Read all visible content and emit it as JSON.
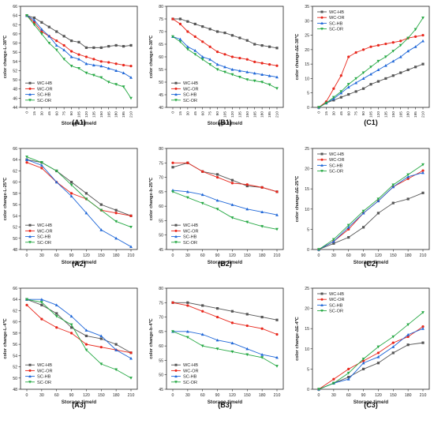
{
  "figure": {
    "colors": {
      "WC-HB": "#555555",
      "WC-OR": "#e8261b",
      "SC-HB": "#1f67d8",
      "SC-OR": "#27a945"
    }
  },
  "chart_data": [
    {
      "id": "A1",
      "panel_label": "(A1)",
      "type": "line",
      "ylabel": "color change-L-38℃",
      "xlabel": "Storage time/d",
      "x": [
        0,
        15,
        30,
        45,
        60,
        75,
        90,
        105,
        120,
        135,
        150,
        165,
        180,
        195,
        210
      ],
      "ylim": [
        44,
        66
      ],
      "yticks": [
        44,
        46,
        48,
        50,
        52,
        54,
        56,
        58,
        60,
        62,
        64,
        66
      ],
      "legend": "bottom-left",
      "series": [
        {
          "name": "WC-HB",
          "values": [
            64,
            63.5,
            62.5,
            61.5,
            60.5,
            59.5,
            58.5,
            58.2,
            57,
            57,
            57,
            57.3,
            57.5,
            57.3,
            57.5
          ]
        },
        {
          "name": "WC-OR",
          "values": [
            64,
            62.5,
            60.5,
            59.5,
            58.5,
            57.5,
            56.2,
            55.5,
            55,
            54.5,
            54,
            53.8,
            53.5,
            53.2,
            53
          ]
        },
        {
          "name": "SC-HB",
          "values": [
            64,
            63,
            61,
            59.5,
            57.5,
            56.5,
            55,
            54.5,
            53.5,
            53.2,
            53,
            52.5,
            52,
            51.5,
            50.5
          ]
        },
        {
          "name": "SC-OR",
          "values": [
            64,
            62,
            60,
            58,
            56.5,
            54.5,
            53,
            52.5,
            51.5,
            51,
            50.5,
            49.5,
            49,
            48.5,
            46
          ]
        }
      ]
    },
    {
      "id": "B1",
      "panel_label": "(B1)",
      "type": "line",
      "ylabel": "color change-b-38℃",
      "xlabel": "Storage time/d",
      "x": [
        0,
        15,
        30,
        45,
        60,
        75,
        90,
        105,
        120,
        135,
        150,
        165,
        180,
        195,
        210
      ],
      "ylim": [
        40,
        80
      ],
      "yticks": [
        40,
        45,
        50,
        55,
        60,
        65,
        70,
        75,
        80
      ],
      "legend": "bottom-left",
      "series": [
        {
          "name": "WC-HB",
          "values": [
            75,
            75,
            74,
            73,
            72,
            71,
            70,
            69.5,
            68.5,
            67.5,
            66.5,
            65,
            64.5,
            64,
            63.5
          ]
        },
        {
          "name": "WC-OR",
          "values": [
            75,
            73,
            70,
            68,
            66,
            64,
            62,
            61,
            60,
            59.5,
            59,
            58,
            57.5,
            57,
            56.5
          ]
        },
        {
          "name": "SC-HB",
          "values": [
            68,
            67,
            64,
            62.5,
            60,
            59,
            57,
            56,
            55,
            54.5,
            54,
            53.5,
            53,
            52.5,
            52
          ]
        },
        {
          "name": "SC-OR",
          "values": [
            68,
            66,
            63,
            61,
            59,
            57,
            55,
            54,
            53,
            52,
            51,
            50.5,
            50,
            49,
            47.5
          ]
        }
      ]
    },
    {
      "id": "C1",
      "panel_label": "(C1)",
      "type": "line",
      "ylabel": "color change-ΔE-38℃",
      "xlabel": "",
      "x": [
        0,
        15,
        30,
        45,
        60,
        75,
        90,
        105,
        120,
        135,
        150,
        165,
        180,
        195,
        210
      ],
      "ylim": [
        0,
        35
      ],
      "yticks": [
        0,
        5,
        10,
        15,
        20,
        25,
        30,
        35
      ],
      "legend": "top-left",
      "series": [
        {
          "name": "WC-HB",
          "values": [
            0,
            1.5,
            2.5,
            3.5,
            4.5,
            5.5,
            6.5,
            8,
            9,
            10,
            11,
            12,
            13,
            14,
            15
          ]
        },
        {
          "name": "WC-OR",
          "values": [
            0,
            2,
            6.5,
            11,
            17.5,
            19,
            20,
            21,
            21.5,
            22,
            22.5,
            23,
            24,
            24.5,
            25
          ]
        },
        {
          "name": "SC-HB",
          "values": [
            0,
            1.5,
            3,
            5,
            7,
            8.5,
            10,
            11.5,
            13,
            14.5,
            16,
            17.5,
            19.5,
            21,
            23
          ]
        },
        {
          "name": "SC-OR",
          "values": [
            0,
            1.5,
            3.5,
            5.5,
            8,
            10,
            12,
            14,
            16,
            17.5,
            19.5,
            21.5,
            24,
            27,
            31
          ]
        }
      ]
    },
    {
      "id": "A2",
      "panel_label": "(A2)",
      "type": "line",
      "ylabel": "color change-L-25℃",
      "xlabel": "Storage time/d",
      "x": [
        0,
        30,
        60,
        90,
        120,
        150,
        180,
        210
      ],
      "ylim": [
        48,
        66
      ],
      "yticks": [
        48,
        50,
        52,
        54,
        56,
        58,
        60,
        62,
        64,
        66
      ],
      "legend": "bottom-left",
      "series": [
        {
          "name": "WC-HB",
          "values": [
            64,
            63.5,
            62,
            60,
            58,
            56,
            55,
            54
          ]
        },
        {
          "name": "WC-OR",
          "values": [
            63.5,
            62.5,
            60,
            58,
            57,
            55,
            54.5,
            54
          ]
        },
        {
          "name": "SC-HB",
          "values": [
            64,
            63,
            60,
            57.5,
            54.5,
            51.5,
            50,
            48.5
          ]
        },
        {
          "name": "SC-OR",
          "values": [
            64.5,
            63.5,
            62,
            59.5,
            57,
            55,
            53,
            52
          ]
        }
      ]
    },
    {
      "id": "B2",
      "panel_label": "(B2)",
      "type": "line",
      "ylabel": "color change-b-25℃",
      "xlabel": "Storage time/d",
      "x": [
        0,
        30,
        60,
        90,
        120,
        150,
        180,
        210
      ],
      "ylim": [
        45,
        80
      ],
      "yticks": [
        45,
        50,
        55,
        60,
        65,
        70,
        75,
        80
      ],
      "legend": "bottom-left",
      "series": [
        {
          "name": "WC-HB",
          "values": [
            73.5,
            75,
            72,
            71,
            69,
            67,
            66.5,
            65
          ]
        },
        {
          "name": "WC-OR",
          "values": [
            75,
            75,
            72,
            70,
            68,
            67.5,
            66.5,
            65
          ]
        },
        {
          "name": "SC-HB",
          "values": [
            65.5,
            65,
            64,
            62,
            60.5,
            59,
            58,
            57
          ]
        },
        {
          "name": "SC-OR",
          "values": [
            65,
            63,
            61,
            59,
            56,
            54.5,
            53,
            52
          ]
        }
      ]
    },
    {
      "id": "C2",
      "panel_label": "(C2)",
      "type": "line",
      "ylabel": "color change-ΔE-25℃",
      "xlabel": "Storage time/d",
      "x": [
        0,
        30,
        60,
        90,
        120,
        150,
        180,
        210
      ],
      "ylim": [
        0,
        25
      ],
      "yticks": [
        0,
        5,
        10,
        15,
        20,
        25
      ],
      "legend": "top-left",
      "series": [
        {
          "name": "WC-HB",
          "values": [
            0,
            1.5,
            3,
            5.5,
            9,
            11.5,
            12.5,
            14
          ]
        },
        {
          "name": "WC-OR",
          "values": [
            0,
            2,
            5,
            9,
            12,
            15.5,
            17.5,
            19.5
          ]
        },
        {
          "name": "SC-HB",
          "values": [
            0,
            2,
            5.5,
            9,
            12,
            15.5,
            18,
            19
          ]
        },
        {
          "name": "SC-OR",
          "values": [
            0,
            2.5,
            6,
            9.5,
            12.5,
            16,
            18.5,
            21
          ]
        }
      ]
    },
    {
      "id": "A3",
      "panel_label": "(A3)",
      "type": "line",
      "ylabel": "color change-L-4℃",
      "xlabel": "Storage time/d",
      "x": [
        0,
        30,
        60,
        90,
        120,
        150,
        180,
        210
      ],
      "ylim": [
        48,
        66
      ],
      "yticks": [
        48,
        50,
        52,
        54,
        56,
        58,
        60,
        62,
        64,
        66
      ],
      "legend": "bottom-left",
      "series": [
        {
          "name": "WC-HB",
          "values": [
            64,
            63,
            61.5,
            59,
            57.5,
            57,
            56,
            54.5
          ]
        },
        {
          "name": "WC-OR",
          "values": [
            63,
            60.5,
            59,
            58,
            56,
            55.5,
            55,
            54.5
          ]
        },
        {
          "name": "SC-HB",
          "values": [
            64,
            64,
            63,
            61,
            58.5,
            57.5,
            55,
            53.5
          ]
        },
        {
          "name": "SC-OR",
          "values": [
            64,
            63.5,
            61,
            59.5,
            55,
            52.5,
            51.5,
            50
          ]
        }
      ]
    },
    {
      "id": "B3",
      "panel_label": "(B3)",
      "type": "line",
      "ylabel": "color change-b-4℃",
      "xlabel": "Storage time/d",
      "x": [
        0,
        30,
        60,
        90,
        120,
        150,
        180,
        210
      ],
      "ylim": [
        45,
        80
      ],
      "yticks": [
        45,
        50,
        55,
        60,
        65,
        70,
        75,
        80
      ],
      "legend": "bottom-left",
      "series": [
        {
          "name": "WC-HB",
          "values": [
            75,
            75,
            74,
            73,
            72,
            71,
            70,
            69
          ]
        },
        {
          "name": "WC-OR",
          "values": [
            75,
            74,
            72,
            70,
            68,
            67,
            66,
            64
          ]
        },
        {
          "name": "SC-HB",
          "values": [
            65,
            65,
            64,
            62,
            61,
            59,
            57,
            56
          ]
        },
        {
          "name": "SC-OR",
          "values": [
            65,
            63,
            60,
            59,
            58,
            57,
            56,
            53
          ]
        }
      ]
    },
    {
      "id": "C3",
      "panel_label": "(C3)",
      "type": "line",
      "ylabel": "color change-ΔE-4℃",
      "xlabel": "Storage time/d",
      "x": [
        0,
        30,
        60,
        90,
        120,
        150,
        180,
        210
      ],
      "ylim": [
        0,
        25
      ],
      "yticks": [
        0,
        5,
        10,
        15,
        20,
        25
      ],
      "legend": "top-left",
      "series": [
        {
          "name": "WC-HB",
          "values": [
            0,
            1.5,
            3,
            5,
            6.5,
            9,
            11,
            11.5
          ]
        },
        {
          "name": "WC-OR",
          "values": [
            0,
            2.5,
            5,
            7,
            9,
            11.5,
            13,
            15.5
          ]
        },
        {
          "name": "SC-HB",
          "values": [
            0,
            1.5,
            2.5,
            6.5,
            8,
            10.5,
            13.5,
            15
          ]
        },
        {
          "name": "SC-OR",
          "values": [
            0,
            1.5,
            4,
            7.5,
            10.5,
            13,
            16,
            19
          ]
        }
      ]
    }
  ]
}
